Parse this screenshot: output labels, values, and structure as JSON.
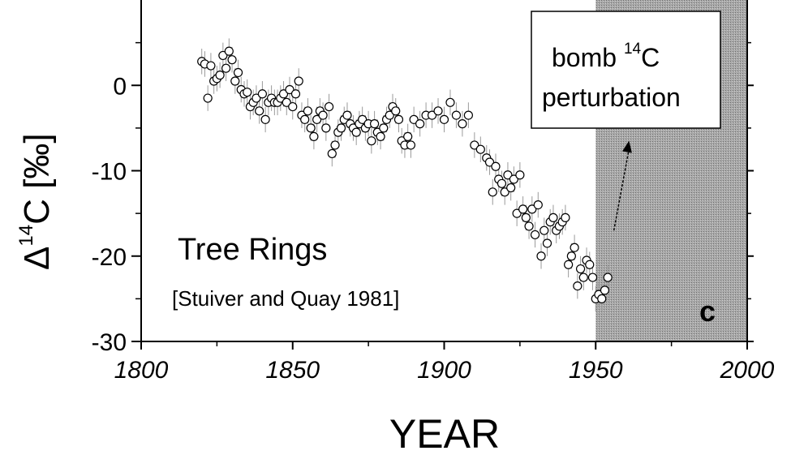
{
  "chart_data": {
    "type": "scatter",
    "xlabel": "YEAR",
    "ylabel_main": "Δ",
    "ylabel_sup": "14",
    "ylabel_rest": "C [‰]",
    "xlim": [
      1800,
      2000
    ],
    "ylim": [
      -30,
      10
    ],
    "x_ticks": [
      1800,
      1850,
      1900,
      1950,
      2000
    ],
    "x_tick_labels": [
      "1800",
      "1850",
      "1900",
      "1950",
      "2000"
    ],
    "y_ticks": [
      -30,
      -20,
      -10,
      0
    ],
    "y_tick_labels": [
      "-30",
      "-20",
      "-10",
      "0"
    ],
    "grid": false,
    "shaded_region": {
      "x_start": 1950,
      "x_end": 2000,
      "color": "#9a9a9a"
    },
    "annotations": {
      "main_label": "Tree Rings",
      "citation": "[Stuiver and Quay 1981]",
      "box_line1_pre": "bomb ",
      "box_line1_sup": "14",
      "box_line1_post": "C",
      "box_line2": "perturbation",
      "panel_letter": "c"
    },
    "marker": {
      "shape": "open-circle",
      "errorbar_color": "#9a9a9a"
    },
    "arrow": {
      "from": [
        1956,
        -17
      ],
      "to": [
        1961,
        -6.5
      ]
    },
    "x": [
      1820,
      1821,
      1822,
      1823,
      1824,
      1825,
      1826,
      1827,
      1828,
      1829,
      1830,
      1831,
      1832,
      1833,
      1834,
      1835,
      1836,
      1837,
      1838,
      1839,
      1840,
      1841,
      1842,
      1843,
      1844,
      1845,
      1846,
      1847,
      1848,
      1849,
      1850,
      1851,
      1852,
      1853,
      1854,
      1855,
      1856,
      1857,
      1858,
      1859,
      1860,
      1861,
      1862,
      1863,
      1864,
      1865,
      1866,
      1867,
      1868,
      1869,
      1870,
      1871,
      1872,
      1873,
      1874,
      1875,
      1876,
      1877,
      1878,
      1879,
      1880,
      1881,
      1882,
      1883,
      1884,
      1885,
      1886,
      1887,
      1888,
      1889,
      1890,
      1892,
      1894,
      1896,
      1898,
      1900,
      1902,
      1904,
      1906,
      1908,
      1910,
      1912,
      1914,
      1915,
      1916,
      1917,
      1918,
      1919,
      1920,
      1921,
      1922,
      1923,
      1924,
      1925,
      1926,
      1927,
      1928,
      1929,
      1930,
      1931,
      1932,
      1933,
      1934,
      1935,
      1936,
      1937,
      1938,
      1939,
      1940,
      1941,
      1942,
      1943,
      1944,
      1945,
      1946,
      1947,
      1948,
      1949,
      1950,
      1951,
      1952,
      1953,
      1954
    ],
    "y": [
      2.8,
      2.5,
      -1.5,
      2.3,
      0.5,
      0.8,
      1.2,
      3.5,
      2.0,
      4.0,
      3.0,
      0.5,
      1.5,
      -0.5,
      -1.0,
      -0.8,
      -2.5,
      -2.0,
      -1.5,
      -3.0,
      -1.0,
      -4.0,
      -2.0,
      -1.5,
      -2.0,
      -2.0,
      -1.5,
      -1.0,
      -2.0,
      -0.5,
      -2.5,
      -1.0,
      0.5,
      -3.5,
      -4.0,
      -3.0,
      -5.0,
      -6.0,
      -4.0,
      -3.0,
      -3.5,
      -5.0,
      -2.5,
      -8.0,
      -7.0,
      -5.5,
      -5.0,
      -4.0,
      -3.5,
      -4.5,
      -5.0,
      -5.5,
      -4.5,
      -4.0,
      -5.0,
      -4.5,
      -6.5,
      -4.5,
      -5.5,
      -6.0,
      -5.0,
      -4.0,
      -3.5,
      -2.5,
      -3.0,
      -4.0,
      -6.5,
      -7.0,
      -6.0,
      -7.0,
      -4.0,
      -4.5,
      -3.5,
      -3.5,
      -3.0,
      -4.0,
      -2.0,
      -3.5,
      -4.5,
      -3.5,
      -7.0,
      -7.5,
      -8.5,
      -9.0,
      -12.5,
      -9.5,
      -11.0,
      -11.5,
      -12.5,
      -10.5,
      -12.0,
      -11.0,
      -15.0,
      -10.5,
      -14.5,
      -15.5,
      -16.5,
      -14.5,
      -17.5,
      -14.0,
      -20.0,
      -17.0,
      -18.5,
      -16.0,
      -15.5,
      -17.0,
      -16.5,
      -16.0,
      -15.5,
      -21.0,
      -20.0,
      -19.0,
      -23.5,
      -21.5,
      -22.5,
      -20.5,
      -21.0,
      -22.5,
      -25.0,
      -24.5,
      -25.0,
      -24.0,
      -22.5
    ],
    "err": [
      1.5,
      1.5,
      1.5,
      1.5,
      1.5,
      1.5,
      1.5,
      1.5,
      1.5,
      1.5,
      1.5,
      1.5,
      1.5,
      1.5,
      1.5,
      1.5,
      1.5,
      1.5,
      1.5,
      1.5,
      1.5,
      1.5,
      1.5,
      1.5,
      1.5,
      1.5,
      1.5,
      1.5,
      1.5,
      1.5,
      1.5,
      1.5,
      1.5,
      1.5,
      1.5,
      1.5,
      1.5,
      1.5,
      1.5,
      1.5,
      1.5,
      1.5,
      1.5,
      1.5,
      1.5,
      1.5,
      1.5,
      1.5,
      1.5,
      1.5,
      1.5,
      1.5,
      1.5,
      1.5,
      1.5,
      1.5,
      1.5,
      1.5,
      1.5,
      1.5,
      1.5,
      1.5,
      1.5,
      1.5,
      1.5,
      1.5,
      1.5,
      1.5,
      1.5,
      1.5,
      1.5,
      1.5,
      1.5,
      1.5,
      1.5,
      1.5,
      1.5,
      1.5,
      1.5,
      1.5,
      1.5,
      1.5,
      1.5,
      1.5,
      1.5,
      1.5,
      1.5,
      1.5,
      1.5,
      1.5,
      1.5,
      1.5,
      1.5,
      1.5,
      1.5,
      1.5,
      1.5,
      1.5,
      1.5,
      1.5,
      1.5,
      1.5,
      1.5,
      1.5,
      1.5,
      1.5,
      1.5,
      1.5,
      1.5,
      1.5,
      1.5,
      1.5,
      1.5,
      1.5,
      1.5,
      1.5,
      1.5,
      1.5,
      1.5,
      1.5,
      1.5,
      1.5,
      1.5
    ]
  }
}
